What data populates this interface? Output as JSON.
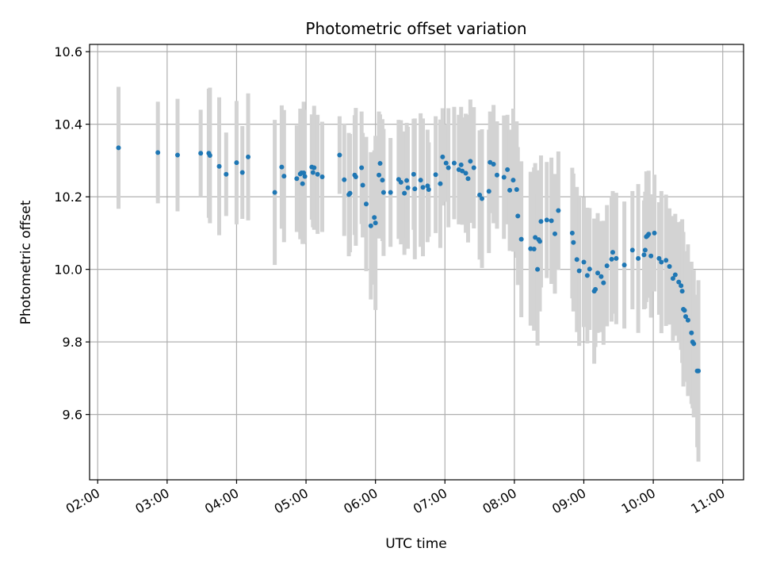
{
  "chart_data": {
    "type": "scatter",
    "title": "Photometric offset variation",
    "xlabel": "UTC time",
    "ylabel": "Photometric offset",
    "grid": true,
    "colors": {
      "points": "#1f77b4",
      "errorbars": "#d3d3d3",
      "grid": "#b0b0b0"
    },
    "xlim": [
      "01:53",
      "11:18"
    ],
    "ylim": [
      9.42,
      10.62
    ],
    "x_ticks": [
      "02:00",
      "03:00",
      "04:00",
      "05:00",
      "06:00",
      "07:00",
      "08:00",
      "09:00",
      "10:00",
      "11:00"
    ],
    "y_ticks": [
      "9.6",
      "9.8",
      "10.0",
      "10.2",
      "10.4",
      "10.6"
    ],
    "series": [
      {
        "x": [
          "02:18",
          "02:52",
          "03:09",
          "03:29",
          "03:36",
          "03:37",
          "03:45",
          "03:51",
          "04:00",
          "04:05",
          "04:10",
          "04:33",
          "04:39",
          "04:41",
          "04:52",
          "04:55",
          "04:56",
          "04:57",
          "04:58",
          "04:59",
          "05:05",
          "05:06",
          "05:07",
          "05:10",
          "05:14",
          "05:29",
          "05:33",
          "05:37",
          "05:38",
          "05:42",
          "05:43",
          "05:48",
          "05:49",
          "05:52",
          "05:56",
          "05:59",
          "06:00",
          "06:03",
          "06:04",
          "06:06",
          "06:07",
          "06:13",
          "06:20",
          "06:22",
          "06:25",
          "06:27",
          "06:28",
          "06:33",
          "06:34",
          "06:39",
          "06:41",
          "06:45",
          "06:46",
          "06:52",
          "06:56",
          "06:58",
          "07:01",
          "07:03",
          "07:08",
          "07:12",
          "07:14",
          "07:15",
          "07:18",
          "07:20",
          "07:22",
          "07:25",
          "07:30",
          "07:32",
          "07:38",
          "07:39",
          "07:42",
          "07:45",
          "07:51",
          "07:54",
          "07:56",
          "07:59",
          "08:02",
          "08:03",
          "08:06",
          "08:14",
          "08:17",
          "08:18",
          "08:20",
          "08:21",
          "08:22",
          "08:23",
          "08:28",
          "08:32",
          "08:35",
          "08:38",
          "08:50",
          "08:51",
          "08:54",
          "08:56",
          "09:00",
          "09:03",
          "09:05",
          "09:09",
          "09:10",
          "09:12",
          "09:15",
          "09:17",
          "09:20",
          "09:24",
          "09:25",
          "09:28",
          "09:35",
          "09:42",
          "09:47",
          "09:52",
          "09:53",
          "09:54",
          "09:55",
          "09:56",
          "09:58",
          "10:01",
          "10:05",
          "10:07",
          "10:11",
          "10:14",
          "10:17",
          "10:19",
          "10:22",
          "10:24",
          "10:25",
          "10:26",
          "10:27",
          "10:28",
          "10:30",
          "10:33",
          "10:34",
          "10:35",
          "10:38",
          "10:39"
        ],
        "y": [
          10.335,
          10.322,
          10.315,
          10.32,
          10.32,
          10.314,
          10.284,
          10.262,
          10.294,
          10.267,
          10.31,
          10.212,
          10.282,
          10.257,
          10.25,
          10.263,
          10.266,
          10.236,
          10.266,
          10.256,
          10.282,
          10.267,
          10.28,
          10.262,
          10.255,
          10.315,
          10.247,
          10.206,
          10.21,
          10.26,
          10.255,
          10.28,
          10.232,
          10.18,
          10.12,
          10.143,
          10.128,
          10.26,
          10.292,
          10.246,
          10.212,
          10.212,
          10.248,
          10.24,
          10.21,
          10.245,
          10.225,
          10.262,
          10.222,
          10.246,
          10.226,
          10.23,
          10.22,
          10.261,
          10.236,
          10.31,
          10.293,
          10.28,
          10.293,
          10.275,
          10.288,
          10.271,
          10.265,
          10.25,
          10.298,
          10.28,
          10.205,
          10.195,
          10.215,
          10.295,
          10.29,
          10.26,
          10.254,
          10.275,
          10.218,
          10.246,
          10.22,
          10.147,
          10.083,
          10.057,
          10.056,
          10.088,
          10.0,
          10.082,
          10.077,
          10.132,
          10.136,
          10.134,
          10.098,
          10.162,
          10.1,
          10.074,
          10.027,
          9.996,
          10.02,
          9.983,
          10.001,
          9.94,
          9.945,
          9.99,
          9.98,
          9.963,
          10.01,
          10.028,
          10.047,
          10.03,
          10.012,
          10.053,
          10.03,
          10.04,
          10.053,
          10.09,
          10.093,
          10.097,
          10.037,
          10.1,
          10.03,
          10.02,
          10.025,
          10.008,
          9.975,
          9.985,
          9.965,
          9.955,
          9.94,
          9.89,
          9.887,
          9.87,
          9.86,
          9.825,
          9.8,
          9.795,
          9.72,
          9.72
        ],
        "err": [
          0.168,
          0.14,
          0.155,
          0.12,
          0.178,
          0.187,
          0.19,
          0.115,
          0.17,
          0.128,
          0.175,
          0.2,
          0.17,
          0.182,
          0.147,
          0.18,
          0.166,
          0.166,
          0.196,
          0.184,
          0.145,
          0.151,
          0.171,
          0.164,
          0.152,
          0.107,
          0.155,
          0.17,
          0.163,
          0.165,
          0.19,
          0.155,
          0.144,
          0.185,
          0.203,
          0.185,
          0.24,
          0.175,
          0.135,
          0.168,
          0.175,
          0.15,
          0.164,
          0.171,
          0.17,
          0.159,
          0.168,
          0.153,
          0.194,
          0.184,
          0.19,
          0.155,
          0.13,
          0.161,
          0.177,
          0.134,
          0.107,
          0.164,
          0.155,
          0.151,
          0.16,
          0.148,
          0.164,
          0.176,
          0.17,
          0.167,
          0.178,
          0.191,
          0.17,
          0.14,
          0.163,
          0.148,
          0.17,
          0.151,
          0.167,
          0.197,
          0.188,
          0.19,
          0.215,
          0.212,
          0.225,
          0.205,
          0.21,
          0.191,
          0.193,
          0.182,
          0.16,
          0.174,
          0.165,
          0.163,
          0.18,
          0.19,
          0.2,
          0.207,
          0.179,
          0.187,
          0.168,
          0.2,
          0.159,
          0.165,
          0.153,
          0.171,
          0.167,
          0.172,
          0.169,
          0.181,
          0.175,
          0.163,
          0.205,
          0.15,
          0.161,
          0.18,
          0.171,
          0.175,
          0.17,
          0.161,
          0.155,
          0.196,
          0.181,
          0.16,
          0.172,
          0.168,
          0.165,
          0.177,
          0.198,
          0.213,
          0.145,
          0.18,
          0.209,
          0.196,
          0.183,
          0.203,
          0.21,
          0.25
        ]
      }
    ]
  }
}
